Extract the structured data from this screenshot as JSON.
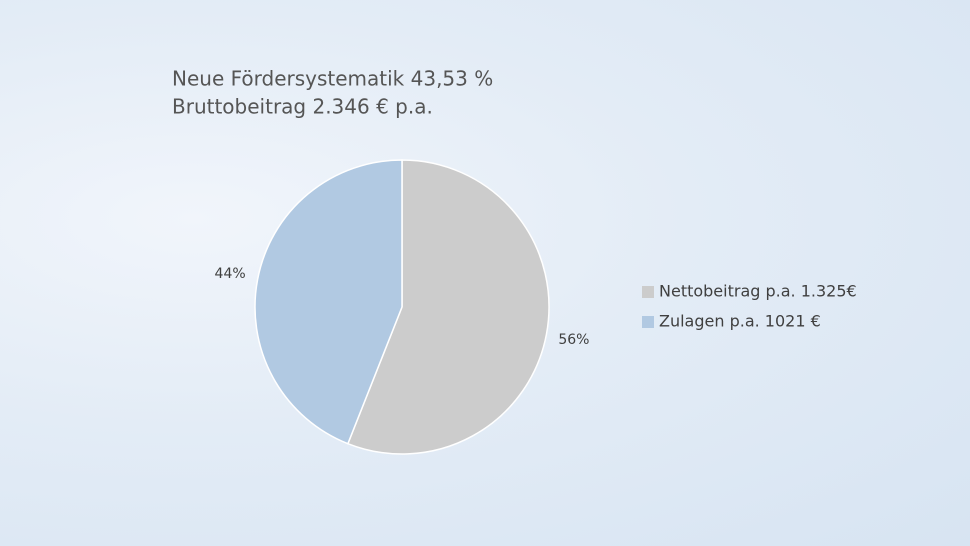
{
  "chart_data": {
    "type": "pie",
    "title": "Neue Fördersystematik 43,53 %",
    "subtitle": "Bruttobeitrag 2.346 € p.a.",
    "categories": [
      "Nettobeitrag p.a. 1.325€",
      "Zulagen p.a. 1021 €"
    ],
    "values": [
      56,
      44
    ],
    "value_labels": [
      "56%",
      "44%"
    ],
    "colors": [
      "#cccccc",
      "#b1c9e2"
    ]
  }
}
